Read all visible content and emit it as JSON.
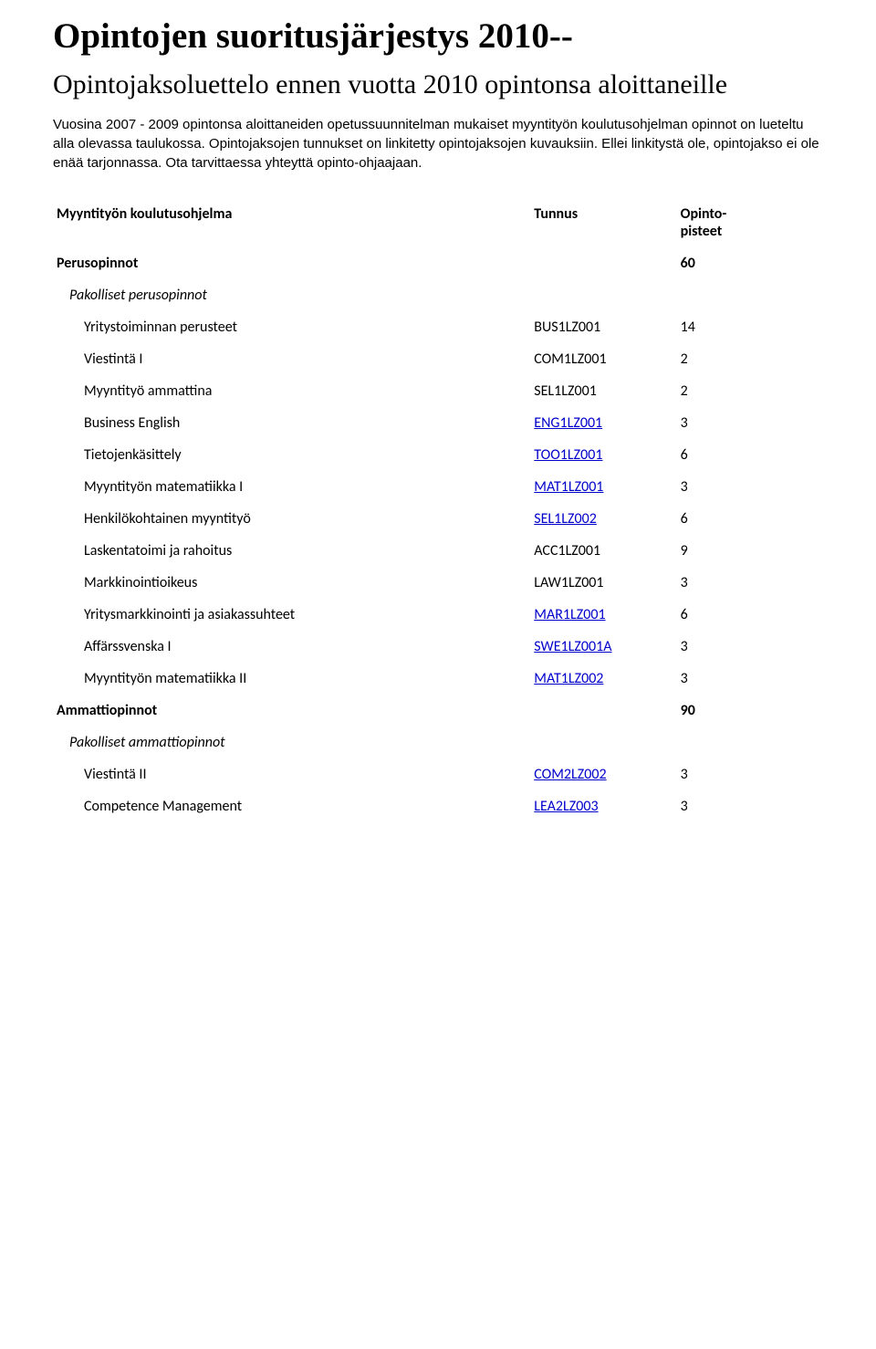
{
  "title": "Opintojen suoritusjärjestys 2010--",
  "subtitle": "Opintojaksoluettelo ennen vuotta 2010 opintonsa aloittaneille",
  "intro": "Vuosina 2007 - 2009 opintonsa aloittaneiden opetussuunnitelman mukaiset myyntityön koulutusohjelman opinnot on lueteltu alla olevassa taulukossa. Opintojaksojen tunnukset on linkitetty opintojaksojen kuvauksiin. Ellei linkitystä ole, opintojakso ei ole enää tarjonnassa. Ota tarvittaessa yhteyttä opinto-ohjaajaan.",
  "table_header": {
    "c1": "Myyntityön koulutusohjelma",
    "c2": "Tunnus",
    "c3": "Opinto-\npisteet"
  },
  "sections": [
    {
      "type": "section",
      "name": "Perusopinnot",
      "points": "60"
    },
    {
      "type": "sub",
      "name": "Pakolliset perusopinnot"
    },
    {
      "type": "row",
      "name": "Yritystoiminnan perusteet",
      "code": "BUS1LZ001",
      "link": false,
      "points": "14"
    },
    {
      "type": "row",
      "name": "Viestintä I",
      "code": "COM1LZ001",
      "link": false,
      "points": "2"
    },
    {
      "type": "row",
      "name": "Myyntityö ammattina",
      "code": "SEL1LZ001",
      "link": false,
      "points": "2"
    },
    {
      "type": "row",
      "name": "Business English",
      "code": "ENG1LZ001",
      "link": true,
      "points": "3"
    },
    {
      "type": "row",
      "name": "Tietojenkäsittely",
      "code": "TOO1LZ001",
      "link": true,
      "points": "6"
    },
    {
      "type": "row",
      "name": "Myyntityön matematiikka I",
      "code": "MAT1LZ001",
      "link": true,
      "points": "3"
    },
    {
      "type": "row",
      "name": "Henkilökohtainen myyntityö",
      "code": "SEL1LZ002",
      "link": true,
      "points": "6"
    },
    {
      "type": "row",
      "name": "Laskentatoimi ja rahoitus",
      "code": "ACC1LZ001",
      "link": false,
      "points": "9"
    },
    {
      "type": "row",
      "name": "Markkinointioikeus",
      "code": "LAW1LZ001",
      "link": false,
      "points": "3"
    },
    {
      "type": "row",
      "name": "Yritysmarkkinointi ja asiakassuhteet",
      "code": "MAR1LZ001",
      "link": true,
      "points": "6"
    },
    {
      "type": "row",
      "name": "Affärssvenska I",
      "code": "SWE1LZ001A",
      "link": true,
      "points": "3"
    },
    {
      "type": "row",
      "name": "Myyntityön matematiikka II",
      "code": "MAT1LZ002",
      "link": true,
      "points": "3"
    },
    {
      "type": "section",
      "name": "Ammattiopinnot",
      "points": "90"
    },
    {
      "type": "sub",
      "name": "Pakolliset ammattiopinnot"
    },
    {
      "type": "row",
      "name": "Viestintä II",
      "code": "COM2LZ002",
      "link": true,
      "points": "3"
    },
    {
      "type": "row",
      "name": "Competence Management",
      "code": "LEA2LZ003",
      "link": true,
      "points": "3"
    }
  ]
}
